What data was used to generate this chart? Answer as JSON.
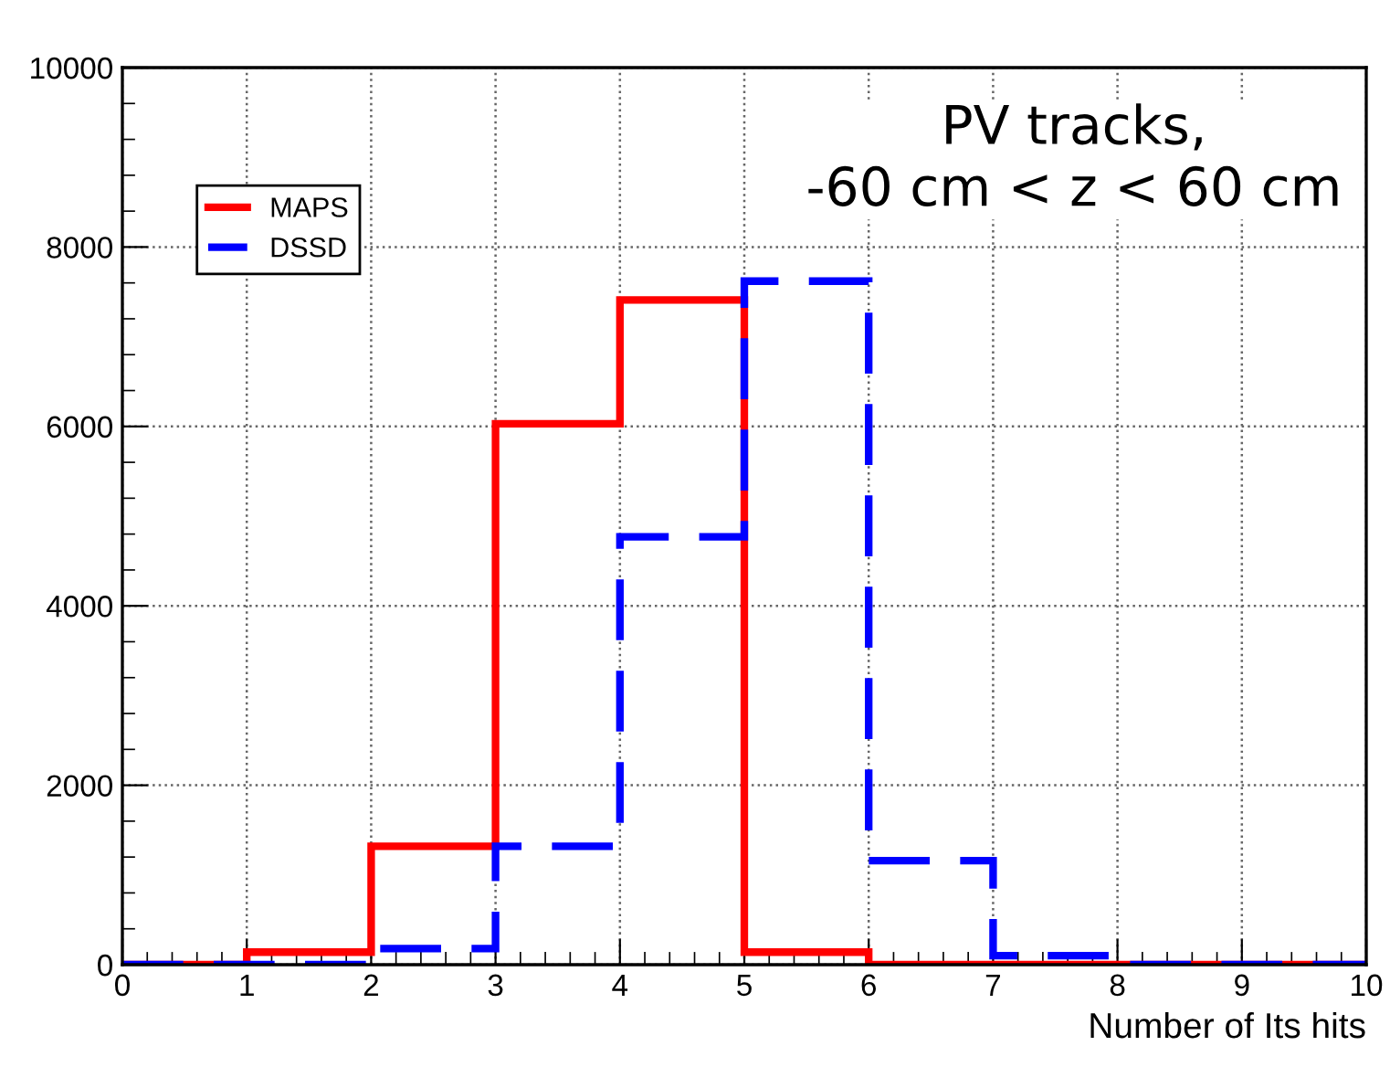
{
  "chart_data": {
    "type": "histogram",
    "xlabel": "Number of Its hits",
    "bins": [
      0,
      1,
      2,
      3,
      4,
      5,
      6,
      7,
      8,
      9,
      10
    ],
    "series": [
      {
        "name": "MAPS",
        "color": "#ff0000",
        "line_style": "solid",
        "values": [
          0,
          140,
          1320,
          6030,
          7410,
          140,
          0,
          0,
          0,
          0
        ]
      },
      {
        "name": "DSSD",
        "color": "#0000ff",
        "line_style": "dashed",
        "values": [
          0,
          0,
          180,
          1320,
          4770,
          7620,
          1160,
          100,
          0,
          0
        ]
      }
    ],
    "xlim": [
      0,
      10
    ],
    "xticks": [
      0,
      1,
      2,
      3,
      4,
      5,
      6,
      7,
      8,
      9,
      10
    ],
    "ylim": [
      0,
      10000
    ],
    "yticks": [
      0,
      2000,
      4000,
      6000,
      8000,
      10000
    ],
    "grid": true,
    "legend": "top left",
    "annotations": [
      "PV tracks,\n-60 cm < z < 60 cm"
    ]
  }
}
